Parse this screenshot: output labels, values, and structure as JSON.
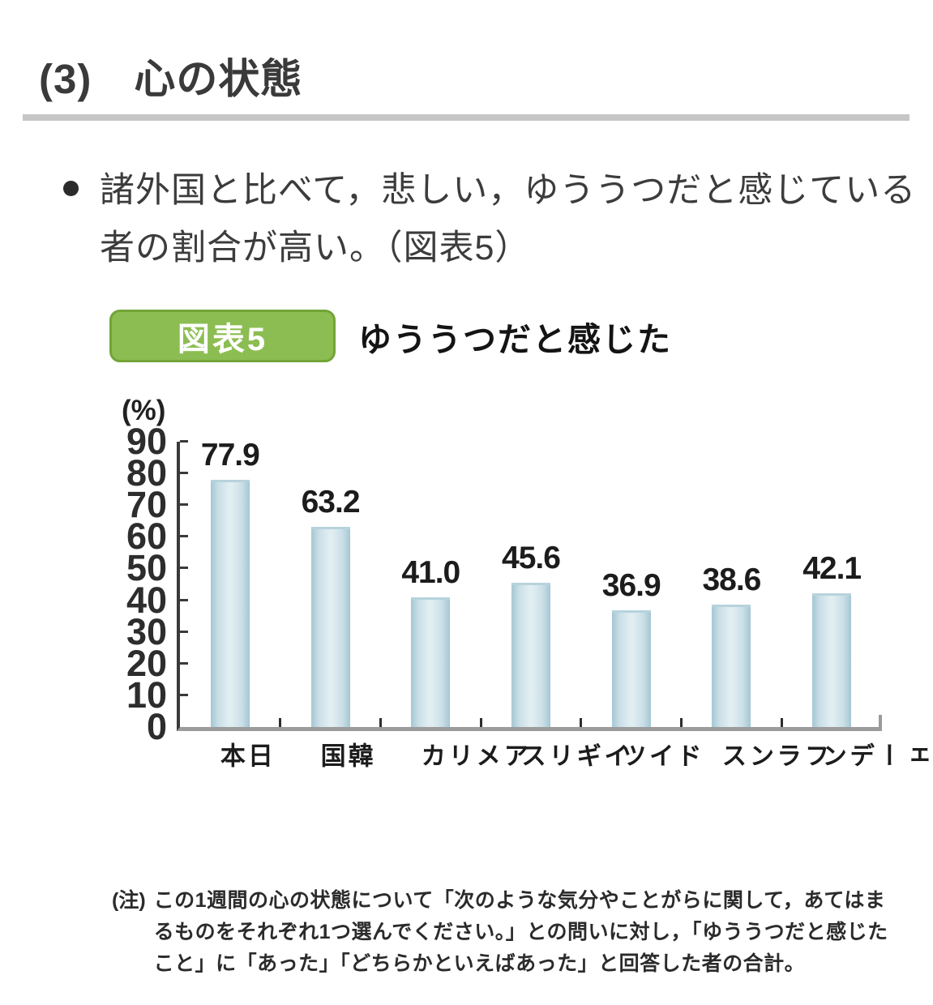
{
  "header": {
    "title": "(3)　心の状態"
  },
  "bullet": {
    "lines": [
      "諸外国と比べて，悲しい，ゆううつだと感じている",
      "者の割合が高い。（図表5）"
    ]
  },
  "figure": {
    "badge_label": "図表5",
    "badge_color": "#8cbd52",
    "badge_border_color": "#73a437",
    "title": "ゆううつだと感じた",
    "note_prefix": "(注)",
    "note_lines": [
      "この1週間の心の状態について「次のような気分やことがらに関して，あてはま",
      "るものをそれぞれ1つ選んでください。」との問いに対し，「ゆううつだと感じた",
      "こと」に「あった」「どちらかといえばあった」と回答した者の合計。"
    ]
  },
  "chart_data": {
    "type": "bar",
    "title": "ゆううつだと感じた",
    "unit_label": "(%)",
    "categories": [
      "日本",
      "韓国",
      "アメリカ",
      "イギリス",
      "ドイツ",
      "フランス",
      "スウェーデン"
    ],
    "values": [
      77.9,
      63.2,
      41.0,
      45.6,
      36.9,
      38.6,
      42.1
    ],
    "value_labels": [
      "77.9",
      "63.2",
      "41.0",
      "45.6",
      "36.9",
      "38.6",
      "42.1"
    ],
    "yticks": [
      0,
      10,
      20,
      30,
      40,
      50,
      60,
      70,
      80,
      90
    ],
    "ylim": [
      0,
      90
    ],
    "grid": false,
    "legend": "none",
    "bar_color_edge": "#a4c7d3",
    "bar_color_mid": "#cadfe7",
    "bar_color_center": "#e0edf1",
    "x_axis_color": "#9b9b9b",
    "y_axis_color": "#3a3a3a"
  }
}
